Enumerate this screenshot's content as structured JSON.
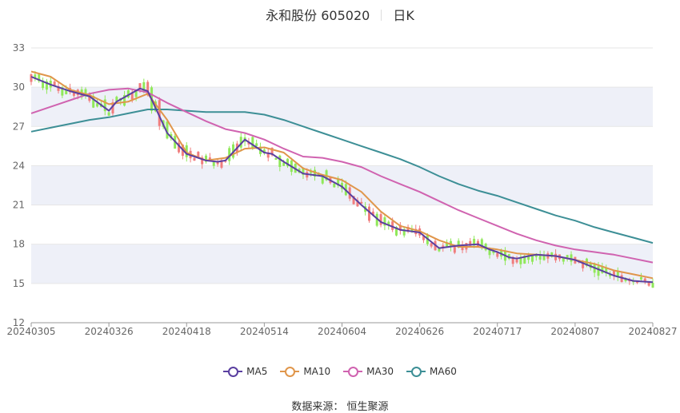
{
  "title": {
    "name": "永和股份 605020",
    "period": "日K"
  },
  "source": "数据来源： 恒生聚源",
  "chart_data": {
    "type": "candlestick",
    "ylim": [
      12,
      33
    ],
    "yticks": [
      12,
      15,
      18,
      21,
      24,
      27,
      30,
      33
    ],
    "xticks": [
      "20240305",
      "20240326",
      "20240418",
      "20240514",
      "20240604",
      "20240626",
      "20240717",
      "20240807",
      "20240827"
    ],
    "colors": {
      "up": "#f07d7d",
      "down": "#90e85a",
      "band": "#eef0f8"
    },
    "legend_position": "bottom",
    "series": [
      {
        "name": "MA5",
        "color": "#5a3fa0",
        "x": [
          0,
          5,
          10,
          15,
          20,
          22,
          25,
          28,
          30,
          35,
          40,
          45,
          48,
          50,
          55,
          58,
          60,
          62,
          65,
          70,
          75,
          80,
          85,
          90,
          95,
          100,
          105,
          110,
          115,
          118,
          120,
          123,
          125,
          128,
          130,
          135,
          140,
          145,
          150,
          155,
          160
        ],
        "values": [
          30.8,
          30.2,
          29.7,
          29.3,
          28.2,
          28.9,
          29.4,
          29.9,
          29.7,
          26.5,
          24.9,
          24.4,
          24.3,
          24.4,
          26.0,
          25.4,
          25.0,
          24.9,
          24.3,
          23.4,
          23.2,
          22.4,
          21.0,
          19.7,
          19.1,
          18.9,
          17.7,
          17.9,
          18.0,
          17.6,
          17.4,
          17.0,
          16.9,
          17.1,
          17.2,
          17.1,
          16.8,
          16.2,
          15.6,
          15.2,
          15.1
        ]
      },
      {
        "name": "MA10",
        "color": "#e0964b",
        "x": [
          0,
          5,
          10,
          15,
          20,
          25,
          30,
          35,
          40,
          45,
          50,
          55,
          60,
          65,
          70,
          75,
          80,
          85,
          90,
          95,
          100,
          105,
          110,
          115,
          120,
          125,
          130,
          135,
          140,
          145,
          150,
          155,
          160
        ],
        "values": [
          31.2,
          30.8,
          29.8,
          29.4,
          28.7,
          28.9,
          29.5,
          27.5,
          25.0,
          24.4,
          24.6,
          25.3,
          25.4,
          25.0,
          23.8,
          23.3,
          22.9,
          22.0,
          20.5,
          19.4,
          19.0,
          18.3,
          17.8,
          17.8,
          17.6,
          17.3,
          17.2,
          17.1,
          16.8,
          16.5,
          16.0,
          15.7,
          15.4
        ]
      },
      {
        "name": "MA30",
        "color": "#d063b0",
        "x": [
          0,
          5,
          10,
          15,
          20,
          25,
          30,
          35,
          40,
          45,
          50,
          55,
          60,
          65,
          70,
          75,
          80,
          85,
          90,
          95,
          100,
          105,
          110,
          115,
          120,
          125,
          130,
          135,
          140,
          145,
          150,
          155,
          160
        ],
        "values": [
          28.0,
          28.5,
          29.0,
          29.5,
          29.8,
          29.9,
          29.6,
          28.8,
          28.1,
          27.4,
          26.8,
          26.5,
          26.0,
          25.3,
          24.7,
          24.6,
          24.3,
          23.9,
          23.2,
          22.6,
          22.0,
          21.3,
          20.6,
          20.0,
          19.4,
          18.8,
          18.3,
          17.9,
          17.6,
          17.4,
          17.2,
          16.9,
          16.6
        ]
      },
      {
        "name": "MA60",
        "color": "#3d8f96",
        "x": [
          0,
          5,
          10,
          15,
          20,
          25,
          30,
          35,
          40,
          45,
          50,
          55,
          60,
          65,
          70,
          75,
          80,
          85,
          90,
          95,
          100,
          105,
          110,
          115,
          120,
          125,
          130,
          135,
          140,
          145,
          150,
          155,
          160
        ],
        "values": [
          26.6,
          26.9,
          27.2,
          27.5,
          27.7,
          28.0,
          28.3,
          28.3,
          28.2,
          28.1,
          28.1,
          28.1,
          27.9,
          27.5,
          27.0,
          26.5,
          26.0,
          25.5,
          25.0,
          24.5,
          23.9,
          23.2,
          22.6,
          22.1,
          21.7,
          21.2,
          20.7,
          20.2,
          19.8,
          19.3,
          18.9,
          18.5,
          18.1
        ]
      }
    ]
  }
}
